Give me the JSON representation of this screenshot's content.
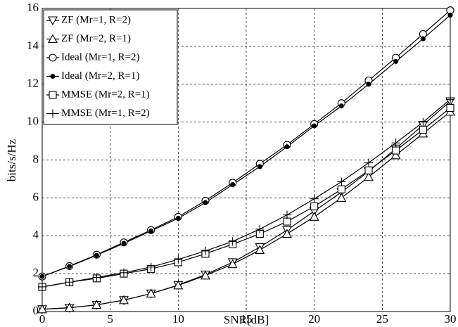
{
  "chart_data": {
    "type": "line",
    "xlabel": "SNR[dB]",
    "ylabel": "bits/s/Hz",
    "x": [
      0,
      2,
      4,
      6,
      8,
      10,
      12,
      14,
      16,
      18,
      20,
      22,
      24,
      26,
      28,
      30
    ],
    "series": [
      {
        "name": "ZF (Mr=1, R=2)",
        "color": "#000000",
        "marker": "down-triangle",
        "values": [
          0.12,
          0.2,
          0.35,
          0.6,
          0.95,
          1.4,
          1.95,
          2.6,
          3.4,
          4.3,
          5.3,
          6.3,
          7.4,
          8.6,
          9.85,
          11.1
        ]
      },
      {
        "name": "ZF (Mr=2, R=1)",
        "color": "#000000",
        "marker": "triangle",
        "values": [
          0.12,
          0.2,
          0.35,
          0.6,
          0.95,
          1.38,
          1.9,
          2.5,
          3.25,
          4.1,
          5.0,
          6.0,
          7.1,
          8.25,
          9.4,
          10.55
        ]
      },
      {
        "name": "Ideal (Mr=1, R=2)",
        "color": "#000000",
        "marker": "circle",
        "values": [
          1.85,
          2.4,
          3.0,
          3.65,
          4.3,
          5.0,
          5.85,
          6.8,
          7.8,
          8.8,
          9.9,
          11.0,
          12.2,
          13.4,
          14.65,
          15.9
        ]
      },
      {
        "name": "Ideal (Mr=2, R=1)",
        "color": "#000000",
        "marker": "dot",
        "values": [
          1.85,
          2.38,
          2.97,
          3.6,
          4.25,
          4.92,
          5.75,
          6.7,
          7.65,
          8.7,
          9.8,
          10.85,
          12.0,
          13.2,
          14.4,
          15.65
        ]
      },
      {
        "name": "MMSE (Mr=2, R=1)",
        "color": "#000000",
        "marker": "square",
        "values": [
          1.3,
          1.55,
          1.75,
          2.0,
          2.25,
          2.6,
          3.05,
          3.55,
          4.1,
          4.75,
          5.55,
          6.45,
          7.45,
          8.5,
          9.6,
          10.75
        ]
      },
      {
        "name": "MMSE (Mr=1, R=2)",
        "color": "#000000",
        "marker": "plus",
        "values": [
          1.3,
          1.55,
          1.8,
          2.05,
          2.35,
          2.75,
          3.2,
          3.7,
          4.35,
          5.1,
          5.95,
          6.85,
          7.85,
          8.9,
          10.0,
          11.2
        ]
      }
    ],
    "xlim": [
      0,
      30
    ],
    "xticks": [
      0,
      5,
      10,
      15,
      20,
      25,
      30
    ],
    "ylim": [
      0,
      16
    ],
    "yticks": [
      0,
      2,
      4,
      6,
      8,
      10,
      12,
      14,
      16
    ],
    "grid": true,
    "legend": "upper-left"
  }
}
